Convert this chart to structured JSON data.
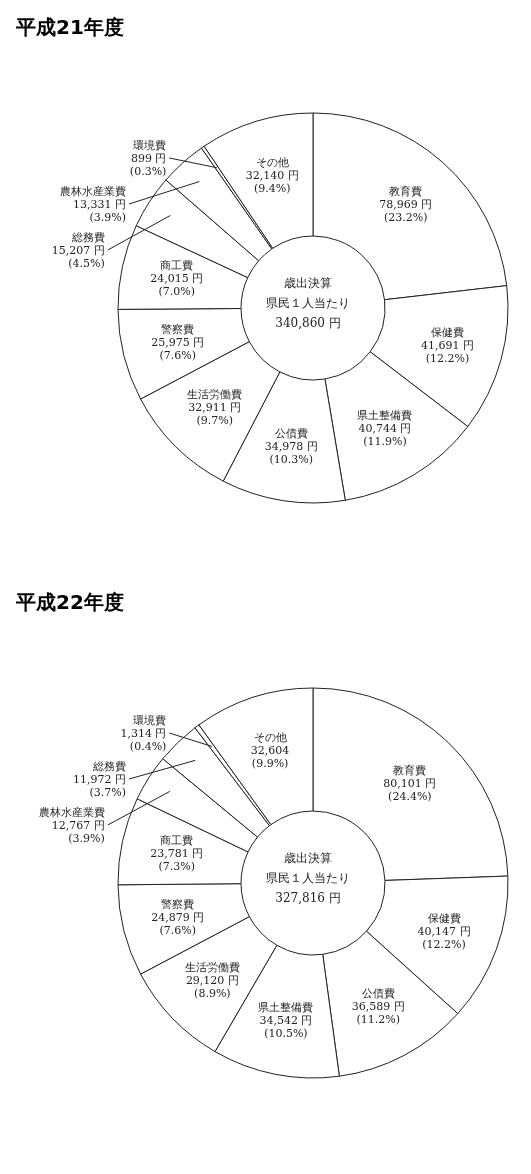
{
  "chart_data": [
    {
      "type": "donut",
      "title": "平成21年度",
      "annotations": [
        "歳出決算",
        "県民１人当たり",
        "340,860 円"
      ],
      "categories": [
        "教育費",
        "保健費",
        "県土整備費",
        "公債費",
        "生活労働費",
        "警察費",
        "商工費",
        "総務費",
        "農林水産業費",
        "環境費",
        "その他"
      ],
      "values": [
        78969,
        41691,
        40744,
        34978,
        32911,
        25975,
        24015,
        15207,
        13331,
        899,
        32140
      ],
      "value_labels": [
        "78,969 円\n(23.2%)",
        "41,691 円\n(12.2%)",
        "40,744 円\n(11.9%)",
        "34,978 円\n(10.3%)",
        "32,911 円\n(9.7%)",
        "25,975 円\n(7.6%)",
        "24,015 円\n(7.0%)",
        "15,207 円\n(4.5%)",
        "13,331 円\n(3.9%)",
        "899 円\n(0.3%)",
        "32,140 円\n(9.4%)"
      ],
      "colors": [
        "#ffffff",
        "#ffffff",
        "#ffffff",
        "#ffffff",
        "#ffffff",
        "#ffffff",
        "#ffffff",
        "#ffffff",
        "#ffffff",
        "#ffffff",
        "#ffffff"
      ]
    },
    {
      "type": "donut",
      "title": "平成22年度",
      "annotations": [
        "歳出決算",
        "県民１人当たり",
        "327,816 円"
      ],
      "categories": [
        "教育費",
        "保健費",
        "公債費",
        "県土整備費",
        "生活労働費",
        "警察費",
        "商工費",
        "農林水産業費",
        "総務費",
        "環境費",
        "その他"
      ],
      "values": [
        80101,
        40147,
        36589,
        34542,
        29120,
        24879,
        23781,
        12767,
        11972,
        1314,
        32604
      ],
      "value_labels": [
        "80,101 円\n(24.4%)",
        "40,147 円\n(12.2%)",
        "36,589 円\n(11.2%)",
        "34,542 円\n(10.5%)",
        "29,120 円\n(8.9%)",
        "24,879 円\n(7.6%)",
        "23,781 円\n(7.3%)",
        "12,767 円\n(3.9%)",
        "11,972 円\n(3.7%)",
        "1,314 円\n(0.4%)",
        "32,604\n(9.9%)"
      ],
      "colors": [
        "#ffffff",
        "#ffffff",
        "#ffffff",
        "#ffffff",
        "#ffffff",
        "#ffffff",
        "#ffffff",
        "#ffffff",
        "#ffffff",
        "#ffffff",
        "#ffffff"
      ]
    }
  ]
}
